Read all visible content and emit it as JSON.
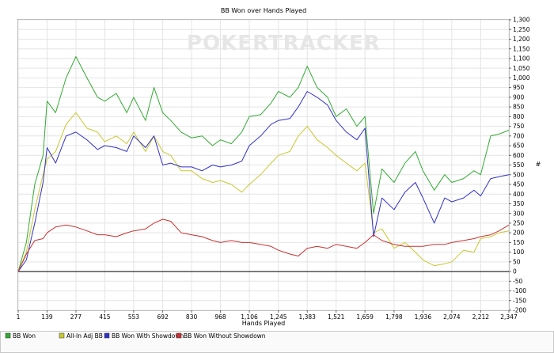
{
  "watermark": "POKERTRACKER",
  "chart_data": {
    "type": "line",
    "title": "BB Won over Hands Played",
    "xlabel": "Hands Played",
    "ylabel": "#",
    "xlim": [
      1,
      2347
    ],
    "ylim": [
      -200,
      1300
    ],
    "x_ticks": [
      1,
      139,
      277,
      415,
      553,
      692,
      830,
      968,
      1106,
      1245,
      1383,
      1521,
      1659,
      1798,
      1936,
      2074,
      2212,
      2347
    ],
    "y_ticks": [
      -200,
      -150,
      -100,
      -50,
      0,
      50,
      100,
      150,
      200,
      250,
      300,
      350,
      400,
      450,
      500,
      550,
      600,
      650,
      700,
      750,
      800,
      850,
      900,
      950,
      1000,
      1050,
      1100,
      1150,
      1200,
      1250,
      1300
    ],
    "grid": true,
    "legend_position": "bottom-left",
    "x": [
      1,
      40,
      80,
      120,
      139,
      180,
      230,
      277,
      330,
      380,
      415,
      470,
      520,
      553,
      610,
      650,
      692,
      730,
      780,
      830,
      880,
      930,
      968,
      1020,
      1070,
      1106,
      1160,
      1210,
      1245,
      1300,
      1340,
      1383,
      1430,
      1480,
      1521,
      1570,
      1620,
      1659,
      1700,
      1740,
      1798,
      1850,
      1900,
      1936,
      1990,
      2040,
      2074,
      2130,
      2180,
      2212,
      2260,
      2300,
      2347
    ],
    "series": [
      {
        "name": "BB Won",
        "color": "#33aa33",
        "values": [
          0,
          150,
          450,
          600,
          880,
          820,
          1000,
          1110,
          1000,
          900,
          880,
          920,
          820,
          900,
          780,
          950,
          820,
          780,
          720,
          690,
          700,
          650,
          680,
          660,
          720,
          800,
          810,
          870,
          930,
          900,
          950,
          1060,
          950,
          900,
          800,
          840,
          750,
          800,
          300,
          530,
          460,
          560,
          620,
          520,
          420,
          500,
          460,
          480,
          520,
          500,
          700,
          710,
          730
        ]
      },
      {
        "name": "All-In Adj BB",
        "color": "#c8c832",
        "values": [
          0,
          100,
          320,
          500,
          580,
          620,
          760,
          820,
          740,
          720,
          670,
          700,
          660,
          720,
          620,
          700,
          620,
          600,
          520,
          520,
          480,
          460,
          470,
          450,
          410,
          450,
          500,
          560,
          600,
          620,
          700,
          750,
          680,
          640,
          600,
          560,
          520,
          560,
          200,
          220,
          120,
          150,
          100,
          60,
          30,
          40,
          50,
          110,
          100,
          170,
          180,
          200,
          210
        ]
      },
      {
        "name": "BB Won With Showdown",
        "color": "#3232c8",
        "values": [
          0,
          60,
          250,
          460,
          640,
          560,
          700,
          720,
          680,
          630,
          650,
          640,
          620,
          700,
          640,
          700,
          550,
          560,
          540,
          540,
          520,
          550,
          540,
          550,
          570,
          650,
          700,
          760,
          780,
          790,
          850,
          930,
          900,
          860,
          780,
          720,
          680,
          740,
          180,
          380,
          320,
          410,
          460,
          380,
          250,
          380,
          360,
          380,
          420,
          390,
          480,
          490,
          500
        ]
      },
      {
        "name": "BB Won Without Showdown",
        "color": "#c83232",
        "values": [
          0,
          90,
          160,
          170,
          200,
          230,
          240,
          230,
          210,
          190,
          190,
          180,
          200,
          210,
          220,
          250,
          270,
          260,
          200,
          190,
          180,
          160,
          150,
          160,
          150,
          150,
          140,
          130,
          110,
          90,
          80,
          120,
          130,
          120,
          140,
          130,
          120,
          150,
          190,
          160,
          140,
          130,
          130,
          130,
          140,
          140,
          150,
          160,
          170,
          180,
          190,
          210,
          240
        ]
      }
    ]
  }
}
